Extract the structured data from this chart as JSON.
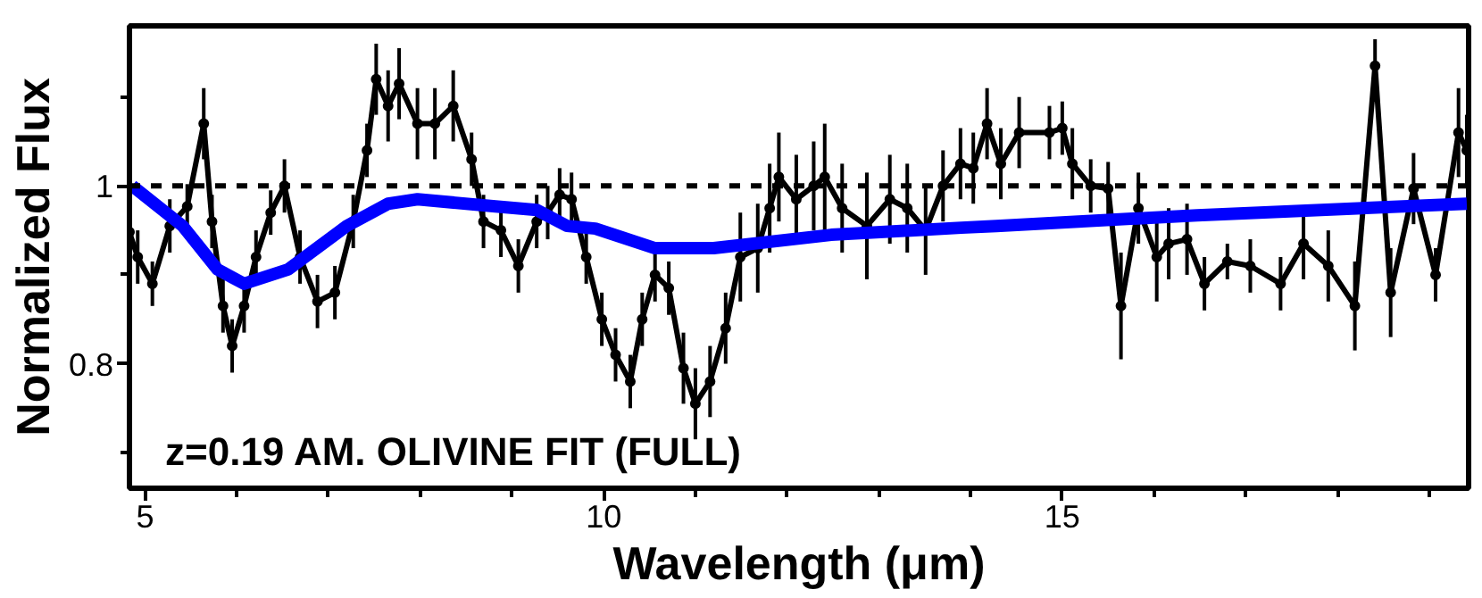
{
  "chart_data": {
    "type": "line",
    "xlabel": "Wavelength (μm)",
    "ylabel": "Normalized Flux",
    "annotations": [
      "z=0.19 AM. OLIVINE FIT (FULL)"
    ],
    "xlim": [
      4.83,
      19.43
    ],
    "ylim": [
      0.66,
      1.18
    ],
    "xticks": [
      5,
      {
        "value": 6,
        "label": null
      },
      {
        "value": 7,
        "label": null
      },
      {
        "value": 8,
        "label": null
      },
      {
        "value": 9,
        "label": null
      },
      10,
      {
        "value": 11,
        "label": null
      },
      {
        "value": 12,
        "label": null
      },
      {
        "value": 13,
        "label": null
      },
      {
        "value": 14,
        "label": null
      },
      15,
      {
        "value": 16,
        "label": null
      },
      {
        "value": 17,
        "label": null
      },
      {
        "value": 18,
        "label": null
      },
      {
        "value": 19,
        "label": null
      }
    ],
    "yticks": [
      {
        "value": 0.7,
        "label": null
      },
      0.8,
      {
        "value": 0.9,
        "label": null
      },
      1,
      {
        "value": 1.1,
        "label": null
      }
    ],
    "ref_lines": [
      {
        "axis": "y",
        "value": 1,
        "color": "#000000",
        "line_style": "dashed"
      }
    ],
    "marker": "circle",
    "line_style": "solid",
    "series": [
      {
        "color": "#000000",
        "x": [
          4.83,
          4.92,
          5.08,
          5.27,
          5.46,
          5.64,
          5.73,
          5.85,
          5.95,
          6.08,
          6.21,
          6.37,
          6.52,
          6.69,
          6.88,
          7.07,
          7.27,
          7.42,
          7.52,
          7.65,
          7.77,
          7.97,
          8.16,
          8.36,
          8.56,
          8.69,
          8.88,
          9.07,
          9.27,
          9.39,
          9.52,
          9.65,
          9.81,
          9.98,
          10.13,
          10.29,
          10.42,
          10.56,
          10.71,
          10.87,
          11.0,
          11.16,
          11.33,
          11.49,
          11.68,
          11.81,
          11.91,
          12.1,
          12.29,
          12.41,
          12.6,
          12.87,
          13.12,
          13.31,
          13.51,
          13.7,
          13.89,
          14.03,
          14.18,
          14.33,
          14.53,
          14.86,
          15.0,
          15.11,
          15.31,
          15.5,
          15.64,
          15.83,
          16.03,
          16.16,
          16.36,
          16.55,
          16.8,
          17.05,
          17.38,
          17.63,
          17.9,
          18.19,
          18.41,
          18.58,
          18.83,
          19.07,
          19.32,
          19.41
        ],
        "values": [
          0.948,
          0.92,
          0.89,
          0.955,
          0.977,
          1.07,
          0.96,
          0.865,
          0.82,
          0.865,
          0.92,
          0.97,
          1.0,
          0.92,
          0.87,
          0.88,
          0.96,
          1.04,
          1.12,
          1.09,
          1.115,
          1.07,
          1.07,
          1.09,
          1.03,
          0.96,
          0.95,
          0.91,
          0.96,
          0.97,
          0.99,
          0.985,
          0.92,
          0.85,
          0.81,
          0.78,
          0.85,
          0.9,
          0.885,
          0.795,
          0.755,
          0.78,
          0.84,
          0.92,
          0.93,
          0.975,
          1.01,
          0.985,
          1.0,
          1.01,
          0.975,
          0.955,
          0.985,
          0.975,
          0.95,
          1.0,
          1.025,
          1.02,
          1.07,
          1.025,
          1.06,
          1.06,
          1.065,
          1.025,
          1.0,
          0.997,
          0.865,
          0.975,
          0.92,
          0.935,
          0.94,
          0.89,
          0.915,
          0.91,
          0.89,
          0.935,
          0.91,
          0.865,
          1.135,
          0.88,
          0.997,
          0.9,
          1.06,
          1.04
        ],
        "errors": [
          0.03,
          0.03,
          0.025,
          0.03,
          0.025,
          0.04,
          0.03,
          0.03,
          0.03,
          0.03,
          0.03,
          0.025,
          0.03,
          0.03,
          0.03,
          0.03,
          0.03,
          0.03,
          0.04,
          0.04,
          0.04,
          0.04,
          0.04,
          0.04,
          0.03,
          0.03,
          0.03,
          0.03,
          0.03,
          0.03,
          0.03,
          0.03,
          0.03,
          0.03,
          0.03,
          0.03,
          0.03,
          0.03,
          0.03,
          0.04,
          0.04,
          0.04,
          0.04,
          0.05,
          0.05,
          0.05,
          0.05,
          0.05,
          0.05,
          0.06,
          0.05,
          0.06,
          0.05,
          0.05,
          0.05,
          0.04,
          0.04,
          0.04,
          0.04,
          0.04,
          0.04,
          0.03,
          0.03,
          0.04,
          0.03,
          0.03,
          0.06,
          0.04,
          0.05,
          0.04,
          0.04,
          0.03,
          0.02,
          0.03,
          0.03,
          0.04,
          0.04,
          0.05,
          0.03,
          0.05,
          0.04,
          0.03,
          0.05,
          0.04
        ]
      },
      {
        "color": "#0000ff",
        "marker": "none",
        "x": [
          4.86,
          5.41,
          5.79,
          6.08,
          6.56,
          7.2,
          7.65,
          7.97,
          8.82,
          9.27,
          9.6,
          9.91,
          10.56,
          11.2,
          12.48,
          13.9,
          14.28,
          16.47,
          19.41
        ],
        "values": [
          1.0,
          0.955,
          0.906,
          0.89,
          0.906,
          0.955,
          0.98,
          0.985,
          0.977,
          0.973,
          0.955,
          0.952,
          0.93,
          0.93,
          0.945,
          0.953,
          0.955,
          0.967,
          0.98
        ]
      }
    ]
  }
}
